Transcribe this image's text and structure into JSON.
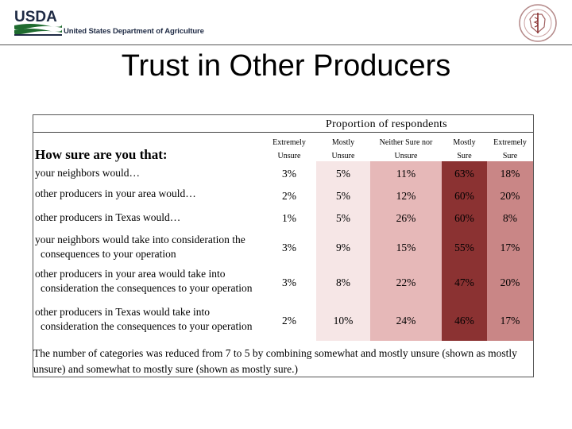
{
  "header": {
    "logo_text": "USDA",
    "agency": "United States Department of Agriculture",
    "seal_icon": "university-seal-icon"
  },
  "title": "Trust in Other Producers",
  "table": {
    "proportion_label": "Proportion of respondents",
    "question_header": "How sure are you that:",
    "columns": [
      {
        "line1": "Extremely",
        "line2": "Unsure"
      },
      {
        "line1": "Mostly",
        "line2": "Unsure"
      },
      {
        "line1": "Neither Sure nor",
        "line2": "Unsure"
      },
      {
        "line1": "Mostly",
        "line2": "Sure"
      },
      {
        "line1": "Extremely",
        "line2": "Sure"
      }
    ],
    "rows": [
      {
        "label1": "your neighbors would…",
        "label2": "",
        "values": [
          "3%",
          "5%",
          "11%",
          "63%",
          "18%"
        ]
      },
      {
        "label1": "other producers in your area would…",
        "label2": "",
        "values": [
          "2%",
          "5%",
          "12%",
          "60%",
          "20%"
        ]
      },
      {
        "label1": "other producers in Texas would…",
        "label2": "",
        "values": [
          "1%",
          "5%",
          "26%",
          "60%",
          "8%"
        ]
      },
      {
        "label1": "your neighbors would take into consideration the",
        "label2": "consequences to your operation",
        "values": [
          "3%",
          "9%",
          "15%",
          "55%",
          "17%"
        ]
      },
      {
        "label1": "other producers in your area would take into",
        "label2": "consideration the consequences to your operation",
        "values": [
          "3%",
          "8%",
          "22%",
          "47%",
          "20%"
        ]
      },
      {
        "label1": "other producers in Texas would take into",
        "label2": "consideration the consequences to your operation",
        "values": [
          "2%",
          "10%",
          "24%",
          "46%",
          "17%"
        ]
      }
    ],
    "column_colors": [
      "#ffffff",
      "#f6e6e6",
      "#e6b8b8",
      "#8b3232",
      "#c98686"
    ],
    "footnote": "The number of categories was reduced from 7 to 5 by combining somewhat and mostly unsure (shown as mostly unsure) and somewhat to mostly sure (shown as mostly sure.)"
  }
}
